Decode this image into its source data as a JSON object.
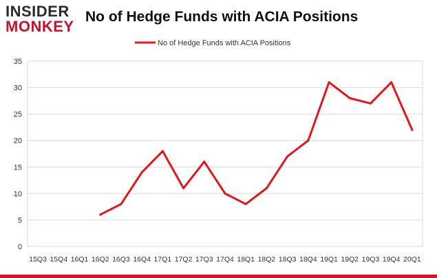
{
  "header": {
    "logo_line1": "INSIDER",
    "logo_line2": "MONKEY",
    "title": "No of Hedge Funds with ACIA Positions"
  },
  "colors": {
    "series": "#e8131b",
    "grid": "#d9d9d9",
    "axis_text": "#333333",
    "brand_red": "#c8102e"
  },
  "chart_data": {
    "type": "line",
    "title": "No of Hedge Funds with ACIA Positions",
    "xlabel": "",
    "ylabel": "",
    "legend_position": "top-center",
    "grid": true,
    "ylim": [
      0,
      35
    ],
    "yticks": [
      0,
      5,
      10,
      15,
      20,
      25,
      30,
      35
    ],
    "categories": [
      "15Q3",
      "15Q4",
      "16Q1",
      "16Q2",
      "16Q3",
      "16Q4",
      "17Q1",
      "17Q2",
      "17Q3",
      "17Q4",
      "18Q1",
      "18Q2",
      "18Q3",
      "18Q4",
      "19Q1",
      "19Q2",
      "19Q3",
      "19Q4",
      "20Q1"
    ],
    "series": [
      {
        "name": "No of Hedge Funds with ACIA Positions",
        "values": [
          null,
          null,
          null,
          6,
          8,
          14,
          18,
          11,
          16,
          10,
          8,
          11,
          17,
          20,
          31,
          28,
          27,
          31,
          22
        ]
      }
    ]
  }
}
